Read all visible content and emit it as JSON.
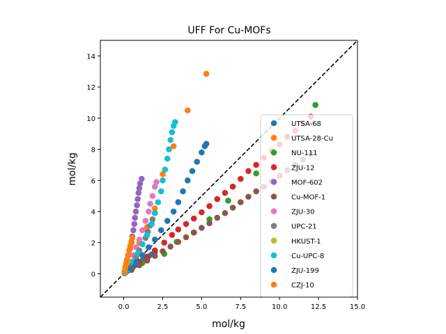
{
  "chart_data": {
    "type": "scatter",
    "title": "UFF For Cu-MOFs",
    "xlabel": "mol/kg",
    "ylabel": "mol/kg",
    "xlim": [
      -1.5,
      15
    ],
    "ylim": [
      -1.5,
      15
    ],
    "xticks": [
      "0.0",
      "2.5",
      "5.0",
      "7.5",
      "10.0",
      "12.5",
      "15.0"
    ],
    "yticks": [
      "0",
      "2",
      "4",
      "6",
      "8",
      "10",
      "12",
      "14"
    ],
    "grid": false,
    "legend_position": "center-right",
    "reference_line": {
      "style": "dashed",
      "color": "#000000",
      "from": [
        -1.5,
        -1.5
      ],
      "to": [
        15,
        15
      ]
    },
    "series": [
      {
        "name": "UTSA-68",
        "color": "#1f77b4",
        "points": [
          [
            0.05,
            0.04
          ],
          [
            0.15,
            0.12
          ],
          [
            0.3,
            0.22
          ],
          [
            0.45,
            0.33
          ],
          [
            0.6,
            0.44
          ],
          [
            0.8,
            0.58
          ],
          [
            1.0,
            0.72
          ],
          [
            1.2,
            0.86
          ],
          [
            1.4,
            1.0
          ],
          [
            1.6,
            1.12
          ],
          [
            1.8,
            1.25
          ],
          [
            2.0,
            1.4
          ]
        ]
      },
      {
        "name": "UTSA-28-Cu",
        "color": "#ff7f0e",
        "points": [
          [
            0.1,
            0.2
          ],
          [
            0.3,
            0.6
          ],
          [
            0.6,
            1.2
          ],
          [
            1.0,
            2.0
          ],
          [
            1.5,
            3.0
          ],
          [
            2.0,
            4.2
          ],
          [
            2.5,
            6.4
          ],
          [
            3.2,
            8.2
          ],
          [
            4.1,
            10.5
          ],
          [
            5.3,
            12.85
          ]
        ]
      },
      {
        "name": "NU-111",
        "color": "#2ca02c",
        "points": [
          [
            0.5,
            0.3
          ],
          [
            1.2,
            0.7
          ],
          [
            2.6,
            1.28
          ],
          [
            3.4,
            2.05
          ],
          [
            4.5,
            2.65
          ],
          [
            5.5,
            3.5
          ],
          [
            6.7,
            4.7
          ],
          [
            8.5,
            6.45
          ],
          [
            12.3,
            10.85
          ]
        ]
      },
      {
        "name": "ZJU-12",
        "color": "#d62728",
        "points": [
          [
            0.5,
            0.4
          ],
          [
            1.0,
            0.75
          ],
          [
            1.5,
            1.1
          ],
          [
            2.0,
            1.5
          ],
          [
            2.6,
            2.0
          ],
          [
            3.1,
            2.5
          ],
          [
            3.5,
            2.85
          ],
          [
            4.0,
            3.2
          ],
          [
            4.5,
            3.55
          ],
          [
            5.0,
            3.95
          ],
          [
            5.5,
            4.35
          ],
          [
            6.0,
            4.8
          ],
          [
            6.5,
            5.2
          ],
          [
            7.0,
            5.6
          ],
          [
            7.5,
            6.1
          ],
          [
            8.0,
            6.6
          ],
          [
            8.5,
            7.0
          ],
          [
            9.0,
            7.45
          ],
          [
            9.5,
            7.9
          ],
          [
            10.0,
            8.3
          ],
          [
            10.5,
            8.8
          ],
          [
            11.0,
            9.2
          ],
          [
            11.5,
            9.7
          ],
          [
            12.0,
            10.1
          ]
        ]
      },
      {
        "name": "MOF-602",
        "color": "#9467bd",
        "points": [
          [
            0.1,
            0.4
          ],
          [
            0.2,
            0.8
          ],
          [
            0.3,
            1.2
          ],
          [
            0.4,
            1.6
          ],
          [
            0.5,
            2.0
          ],
          [
            0.55,
            2.4
          ],
          [
            0.62,
            2.8
          ],
          [
            0.68,
            3.2
          ],
          [
            0.72,
            3.6
          ],
          [
            0.78,
            4.0
          ],
          [
            0.85,
            4.4
          ],
          [
            0.9,
            4.8
          ],
          [
            0.95,
            5.2
          ],
          [
            1.0,
            5.5
          ],
          [
            1.05,
            5.8
          ],
          [
            1.15,
            6.1
          ]
        ]
      },
      {
        "name": "Cu-MOF-1",
        "color": "#8c564b",
        "points": [
          [
            0.5,
            0.25
          ],
          [
            1.0,
            0.55
          ],
          [
            1.5,
            0.85
          ],
          [
            2.0,
            1.15
          ],
          [
            2.5,
            1.45
          ],
          [
            3.0,
            1.75
          ],
          [
            3.5,
            2.05
          ],
          [
            4.0,
            2.35
          ],
          [
            4.5,
            2.65
          ],
          [
            5.0,
            2.95
          ],
          [
            5.5,
            3.25
          ],
          [
            6.0,
            3.6
          ],
          [
            6.5,
            3.9
          ],
          [
            7.0,
            4.25
          ],
          [
            7.5,
            4.6
          ],
          [
            8.0,
            4.95
          ],
          [
            8.5,
            5.3
          ],
          [
            9.0,
            5.6
          ],
          [
            9.5,
            5.95
          ],
          [
            10.0,
            6.3
          ],
          [
            10.5,
            6.65
          ],
          [
            11.0,
            7.0
          ],
          [
            11.5,
            7.35
          ],
          [
            12.0,
            7.7
          ]
        ]
      },
      {
        "name": "ZJU-30",
        "color": "#e377c2",
        "points": [
          [
            0.2,
            0.3
          ],
          [
            0.4,
            0.7
          ],
          [
            0.6,
            1.2
          ],
          [
            0.8,
            1.7
          ],
          [
            1.0,
            2.2
          ],
          [
            1.2,
            2.8
          ],
          [
            1.4,
            3.4
          ],
          [
            1.6,
            4.0
          ],
          [
            1.7,
            4.5
          ],
          [
            1.85,
            5.0
          ],
          [
            2.0,
            5.6
          ],
          [
            2.1,
            5.9
          ]
        ]
      },
      {
        "name": "UPC-21",
        "color": "#7f7f7f",
        "points": [
          [
            0.2,
            0.2
          ],
          [
            0.4,
            0.5
          ],
          [
            0.6,
            0.8
          ],
          [
            0.8,
            1.1
          ],
          [
            1.0,
            1.5
          ],
          [
            1.2,
            1.9
          ],
          [
            1.4,
            2.3
          ],
          [
            1.55,
            2.7
          ],
          [
            1.7,
            3.1
          ],
          [
            1.85,
            3.5
          ],
          [
            2.0,
            3.9
          ]
        ]
      },
      {
        "name": "HKUST-1",
        "color": "#bcbd22",
        "points": [
          [
            0.05,
            0.1
          ],
          [
            0.1,
            0.3
          ],
          [
            0.15,
            0.5
          ],
          [
            0.2,
            0.7
          ],
          [
            0.25,
            0.9
          ]
        ]
      },
      {
        "name": "Cu-UPC-8",
        "color": "#17becf",
        "points": [
          [
            0.3,
            0.3
          ],
          [
            0.6,
            0.8
          ],
          [
            0.9,
            1.3
          ],
          [
            1.2,
            1.9
          ],
          [
            1.5,
            2.5
          ],
          [
            1.8,
            3.2
          ],
          [
            2.0,
            3.9
          ],
          [
            2.2,
            4.6
          ],
          [
            2.4,
            5.3
          ],
          [
            2.5,
            6.0
          ],
          [
            2.65,
            6.7
          ],
          [
            2.8,
            7.4
          ],
          [
            2.9,
            8.0
          ],
          [
            3.0,
            8.6
          ],
          [
            3.1,
            9.1
          ],
          [
            3.2,
            9.5
          ],
          [
            3.3,
            9.75
          ]
        ]
      },
      {
        "name": "ZJU-199",
        "color": "#1f77b4",
        "points": [
          [
            0.4,
            0.35
          ],
          [
            0.8,
            0.75
          ],
          [
            1.2,
            1.2
          ],
          [
            1.6,
            1.7
          ],
          [
            2.0,
            2.2
          ],
          [
            2.4,
            2.8
          ],
          [
            2.8,
            3.4
          ],
          [
            3.2,
            4.0
          ],
          [
            3.5,
            4.6
          ],
          [
            3.8,
            5.3
          ],
          [
            4.1,
            6.0
          ],
          [
            4.4,
            6.6
          ],
          [
            4.7,
            7.2
          ],
          [
            5.0,
            7.8
          ],
          [
            5.2,
            8.2
          ],
          [
            5.3,
            8.35
          ]
        ]
      },
      {
        "name": "CZJ-10",
        "color": "#ff7f0e",
        "points": [
          [
            0.05,
            0.15
          ],
          [
            0.1,
            0.4
          ],
          [
            0.15,
            0.65
          ],
          [
            0.2,
            0.9
          ],
          [
            0.28,
            1.2
          ],
          [
            0.35,
            1.5
          ],
          [
            0.42,
            1.8
          ],
          [
            0.5,
            2.1
          ],
          [
            0.55,
            2.3
          ]
        ]
      }
    ]
  }
}
